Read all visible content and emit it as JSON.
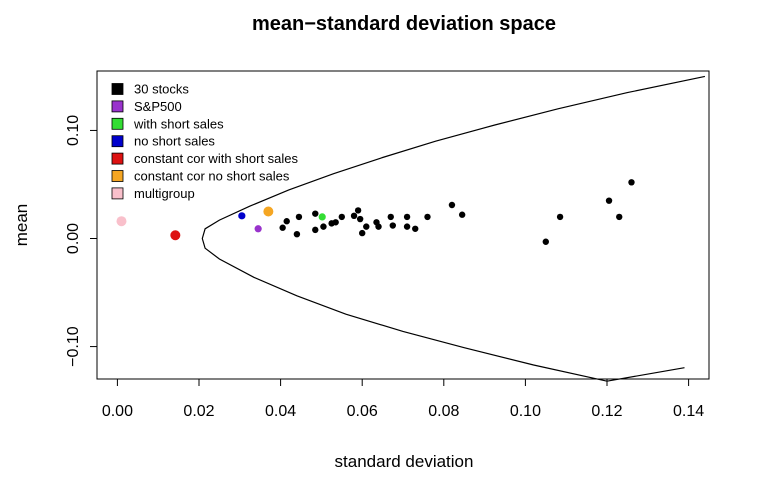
{
  "chart_data": {
    "type": "scatter",
    "title": "mean−standard deviation space",
    "xlabel": "standard deviation",
    "ylabel": "mean",
    "xlim": [
      -0.005,
      0.145
    ],
    "ylim": [
      -0.13,
      0.155
    ],
    "x_ticks": [
      0.0,
      0.02,
      0.04,
      0.06,
      0.08,
      0.1,
      0.12,
      0.14
    ],
    "x_tick_labels": [
      "0.00",
      "0.02",
      "0.04",
      "0.06",
      "0.08",
      "0.10",
      "0.12",
      "0.14"
    ],
    "y_ticks": [
      -0.1,
      0.0,
      0.1
    ],
    "y_tick_labels": [
      "−0.10",
      "0.00",
      "0.10"
    ],
    "grid": false,
    "legend_position": "top-left",
    "frontier": {
      "color": "#000000",
      "points": [
        [
          0.144,
          0.15
        ],
        [
          0.125,
          0.135
        ],
        [
          0.108,
          0.12
        ],
        [
          0.0925,
          0.105
        ],
        [
          0.078,
          0.09
        ],
        [
          0.065,
          0.075
        ],
        [
          0.053,
          0.06
        ],
        [
          0.042,
          0.045
        ],
        [
          0.0325,
          0.03
        ],
        [
          0.025,
          0.017
        ],
        [
          0.0215,
          0.009
        ],
        [
          0.0208,
          0.0
        ],
        [
          0.0215,
          -0.009
        ],
        [
          0.025,
          -0.019
        ],
        [
          0.0335,
          -0.036
        ],
        [
          0.044,
          -0.053
        ],
        [
          0.056,
          -0.07
        ],
        [
          0.07,
          -0.086
        ],
        [
          0.085,
          -0.101
        ],
        [
          0.102,
          -0.117
        ],
        [
          0.12,
          -0.132
        ],
        [
          0.139,
          -0.1195
        ]
      ]
    },
    "series": [
      {
        "name": "30 stocks",
        "color": "#000000",
        "x": [
          0.0405,
          0.0415,
          0.044,
          0.0445,
          0.0485,
          0.0485,
          0.0505,
          0.0525,
          0.0535,
          0.055,
          0.058,
          0.059,
          0.0595,
          0.06,
          0.061,
          0.0635,
          0.064,
          0.067,
          0.0675,
          0.071,
          0.071,
          0.073,
          0.076,
          0.082,
          0.0845,
          0.105,
          0.1085,
          0.1205,
          0.123,
          0.126
        ],
        "y": [
          0.01,
          0.016,
          0.004,
          0.02,
          0.023,
          0.008,
          0.011,
          0.014,
          0.015,
          0.02,
          0.021,
          0.026,
          0.018,
          0.005,
          0.011,
          0.015,
          0.011,
          0.02,
          0.012,
          0.02,
          0.011,
          0.009,
          0.02,
          0.031,
          0.022,
          -0.003,
          0.02,
          0.035,
          0.02,
          0.052
        ]
      },
      {
        "name": "S&P500",
        "color": "#9933CC",
        "x": [
          0.0345
        ],
        "y": [
          0.009
        ]
      },
      {
        "name": "with short sales",
        "color": "#33DD33",
        "x": [
          0.0502
        ],
        "y": [
          0.02
        ]
      },
      {
        "name": "no short sales",
        "color": "#0000CC",
        "x": [
          0.0305
        ],
        "y": [
          0.021
        ]
      },
      {
        "name": "constant cor with short sales",
        "color": "#DD1111",
        "x": [
          0.0142
        ],
        "y": [
          0.003
        ]
      },
      {
        "name": "constant cor no short sales",
        "color": "#F5A623",
        "x": [
          0.037
        ],
        "y": [
          0.025
        ]
      },
      {
        "name": "multigroup",
        "color": "#F9C0CB",
        "x": [
          0.001
        ],
        "y": [
          0.016
        ]
      }
    ]
  }
}
